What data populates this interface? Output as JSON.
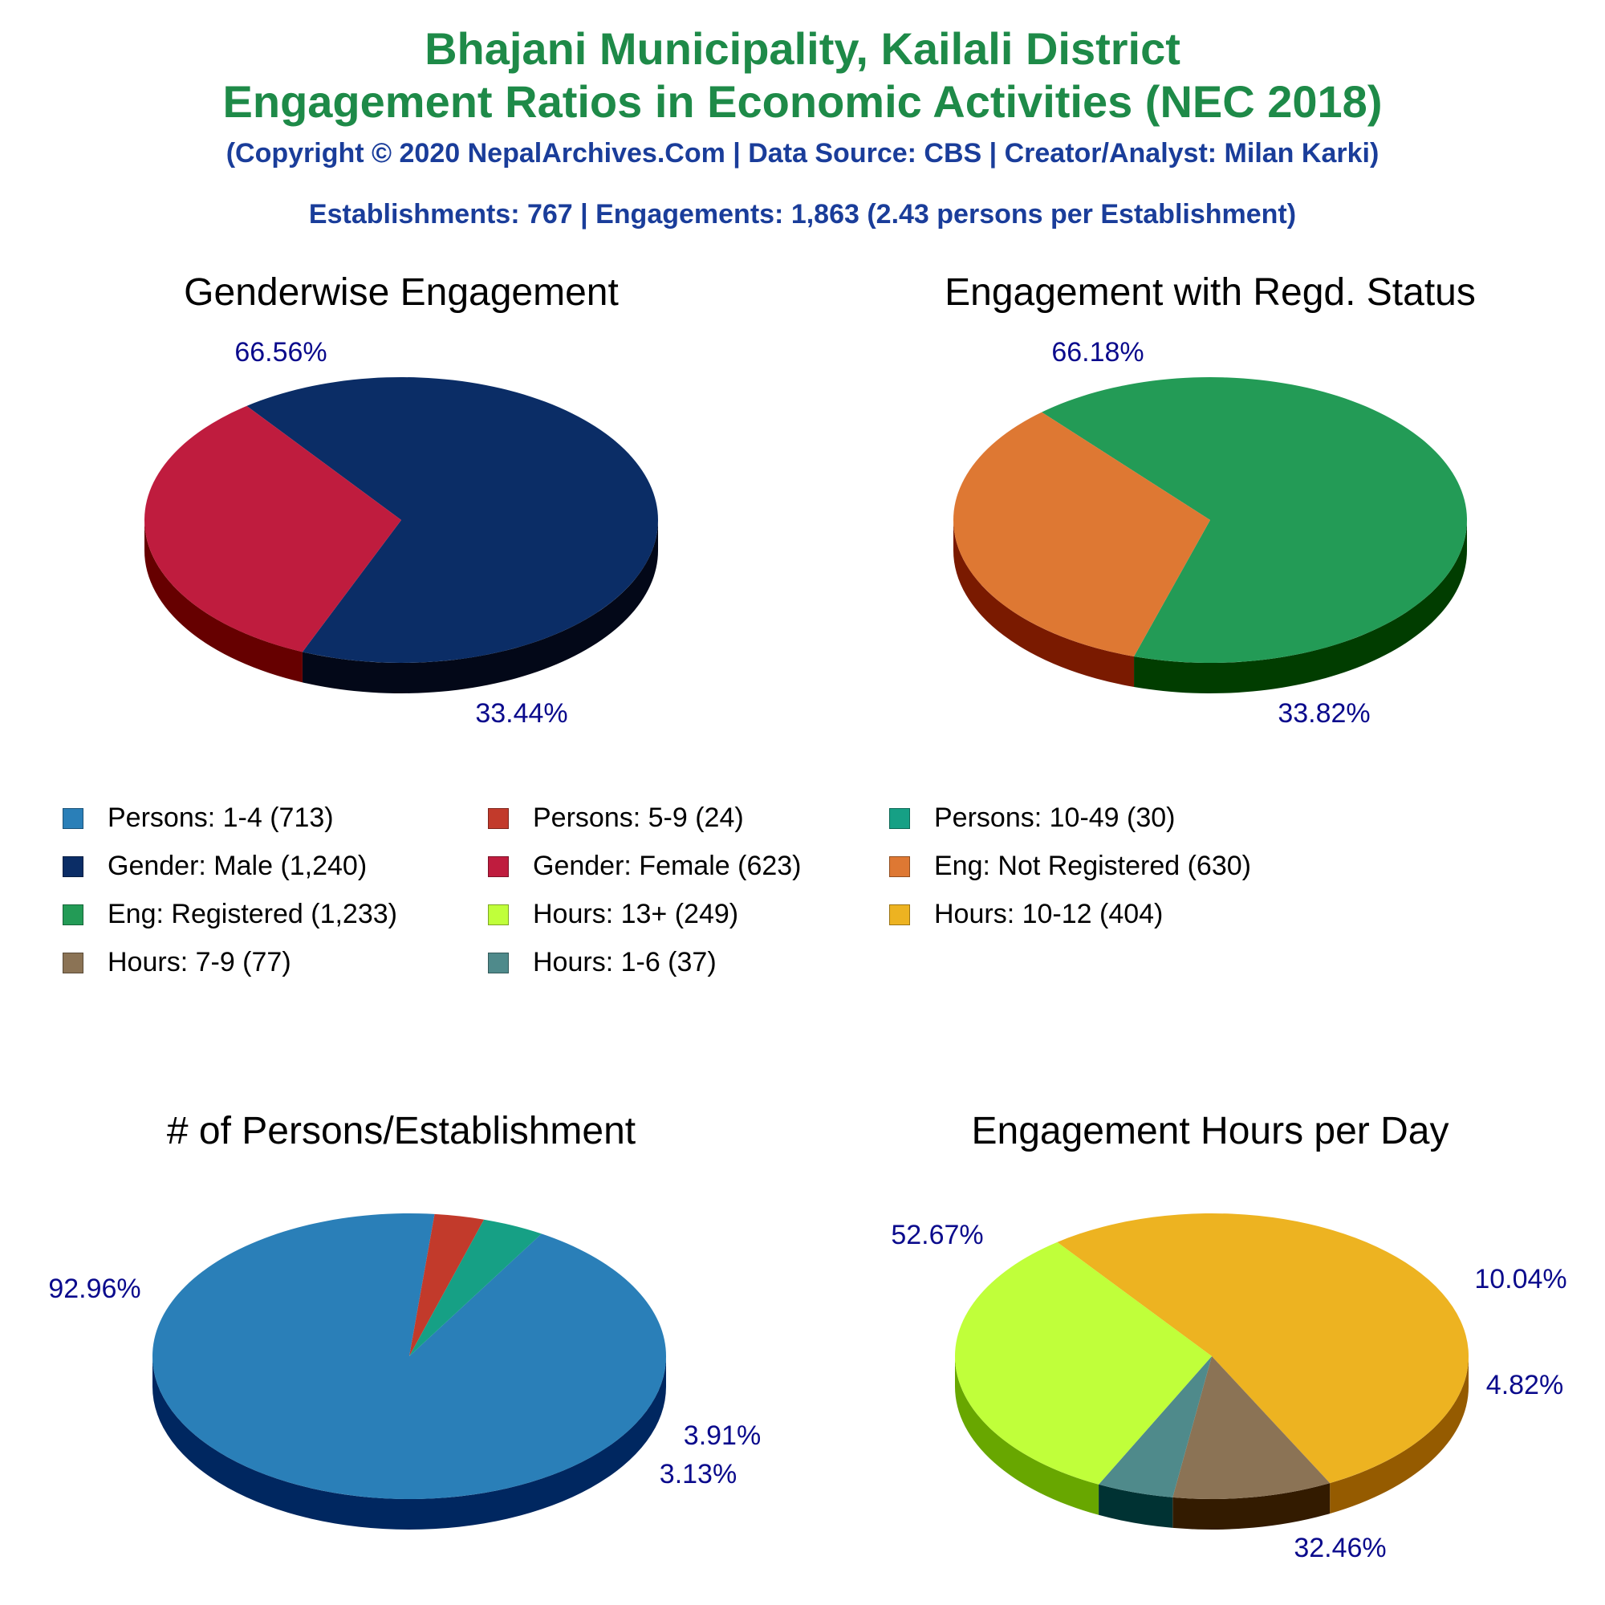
{
  "header": {
    "title_line1": "Bhajani Municipality, Kailali District",
    "title_line2": "Engagement Ratios in Economic Activities (NEC 2018)",
    "copyright": "(Copyright © 2020 NepalArchives.Com | Data Source: CBS | Creator/Analyst: Milan Karki)",
    "stats": "Establishments: 767 | Engagements: 1,863 (2.43 persons per Establishment)"
  },
  "legend": [
    {
      "label": "Persons: 1-4 (713)",
      "color": "#2a7fb8"
    },
    {
      "label": "Persons: 5-9 (24)",
      "color": "#c23a2b"
    },
    {
      "label": "Persons: 10-49 (30)",
      "color": "#16a085"
    },
    {
      "label": "Gender: Male (1,240)",
      "color": "#0b2d66"
    },
    {
      "label": "Gender: Female (623)",
      "color": "#bf1c3e"
    },
    {
      "label": "Eng: Not Registered (630)",
      "color": "#de7833"
    },
    {
      "label": "Eng: Registered (1,233)",
      "color": "#239b56"
    },
    {
      "label": "Hours: 13+ (249)",
      "color": "#c0ff3a"
    },
    {
      "label": "Hours: 10-12 (404)",
      "color": "#edb321"
    },
    {
      "label": "Hours: 7-9 (77)",
      "color": "#8b7355"
    },
    {
      "label": "Hours: 1-6 (37)",
      "color": "#4f8a8b"
    }
  ],
  "chart_data": [
    {
      "type": "pie",
      "title": "Genderwise Engagement",
      "slices": [
        {
          "name": "Gender: Male",
          "value": 1240,
          "percent": 66.56,
          "label": "66.56%",
          "color": "#0b2d66",
          "side": "#030818"
        },
        {
          "name": "Gender: Female",
          "value": 623,
          "percent": 33.44,
          "label": "33.44%",
          "color": "#bf1c3e",
          "side": "#660000"
        }
      ]
    },
    {
      "type": "pie",
      "title": "Engagement with Regd. Status",
      "slices": [
        {
          "name": "Eng: Registered",
          "value": 1233,
          "percent": 66.18,
          "label": "66.18%",
          "color": "#239b56",
          "side": "#013d00"
        },
        {
          "name": "Eng: Not Registered",
          "value": 630,
          "percent": 33.82,
          "label": "33.82%",
          "color": "#de7833",
          "side": "#7a1a00"
        }
      ]
    },
    {
      "type": "pie",
      "title": "# of Persons/Establishment",
      "slices": [
        {
          "name": "Persons: 1-4",
          "value": 713,
          "percent": 92.96,
          "label": "92.96%",
          "color": "#2a7fb8",
          "side": "#002760"
        },
        {
          "name": "Persons: 5-9",
          "value": 24,
          "percent": 3.13,
          "label": "3.13%",
          "color": "#c23a2b",
          "side": "#6a0000"
        },
        {
          "name": "Persons: 10-49",
          "value": 30,
          "percent": 3.91,
          "label": "3.91%",
          "color": "#16a085",
          "side": "#00412d"
        }
      ]
    },
    {
      "type": "pie",
      "title": "Engagement Hours per Day",
      "slices": [
        {
          "name": "Hours: 10-12",
          "value": 404,
          "percent": 52.67,
          "label": "52.67%",
          "color": "#edb321",
          "side": "#955b00"
        },
        {
          "name": "Hours: 7-9",
          "value": 77,
          "percent": 10.04,
          "label": "10.04%",
          "color": "#8b7355",
          "side": "#331b00"
        },
        {
          "name": "Hours: 1-6",
          "value": 37,
          "percent": 4.82,
          "label": "4.82%",
          "color": "#4f8a8b",
          "side": "#003233"
        },
        {
          "name": "Hours: 13+",
          "value": 249,
          "percent": 32.46,
          "label": "32.46%",
          "color": "#c0ff3a",
          "side": "#68a700"
        }
      ]
    }
  ]
}
